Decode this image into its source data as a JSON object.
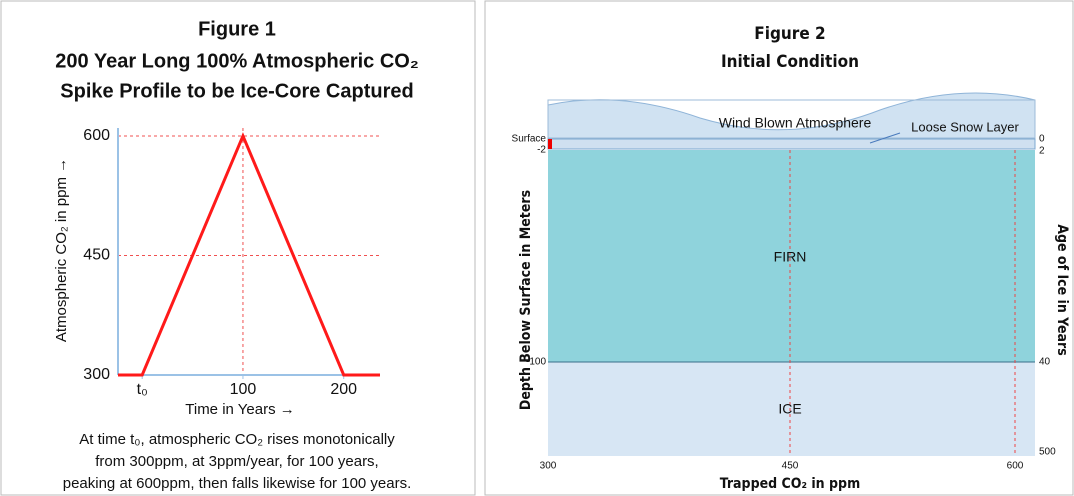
{
  "chart_data": {
    "type": "line",
    "title": [
      "Figure 1",
      "200 Year Long 100% Atmospheric CO₂",
      "Spike Profile to be Ice-Core Captured"
    ],
    "x_label": "Time in Years →",
    "y_label": "Atmospheric  CO₂ in ppm →",
    "x": [
      -24,
      0,
      100,
      200,
      236
    ],
    "values": [
      300,
      300,
      600,
      300,
      300
    ],
    "color": "#ff1a1a",
    "xlim": [
      -24,
      236
    ],
    "xticks": [
      {
        "value": 0,
        "label": "t₀"
      },
      100,
      200
    ],
    "vlines": [
      100
    ],
    "ylim": [
      300,
      610
    ],
    "yticks": [
      300,
      450,
      600
    ],
    "grid": true,
    "caption": [
      "At time t₀, atmospheric CO₂ rises monotonically",
      "from 300ppm, at 3ppm/year, for 100 years,",
      "peaking at 600ppm, then falls likewise for 100 years."
    ]
  },
  "figure2": {
    "title": [
      "Figure 2",
      "Initial Condition"
    ],
    "labels": {
      "atmosphere": "Wind Blown Atmosphere",
      "snow": "Loose Snow Layer",
      "firn": "FIRN",
      "ice": "ICE",
      "surface": "Surface"
    },
    "left_ticks": [
      "-2",
      "-100"
    ],
    "right_ticks": [
      "0",
      "2",
      "40",
      "500"
    ],
    "bottom_ticks": [
      "300",
      "450",
      "600"
    ],
    "left_label": "Depth Below Surface in Meters",
    "right_label": "Age of Ice in Years",
    "bottom_label": "Trapped CO₂ in ppm"
  }
}
